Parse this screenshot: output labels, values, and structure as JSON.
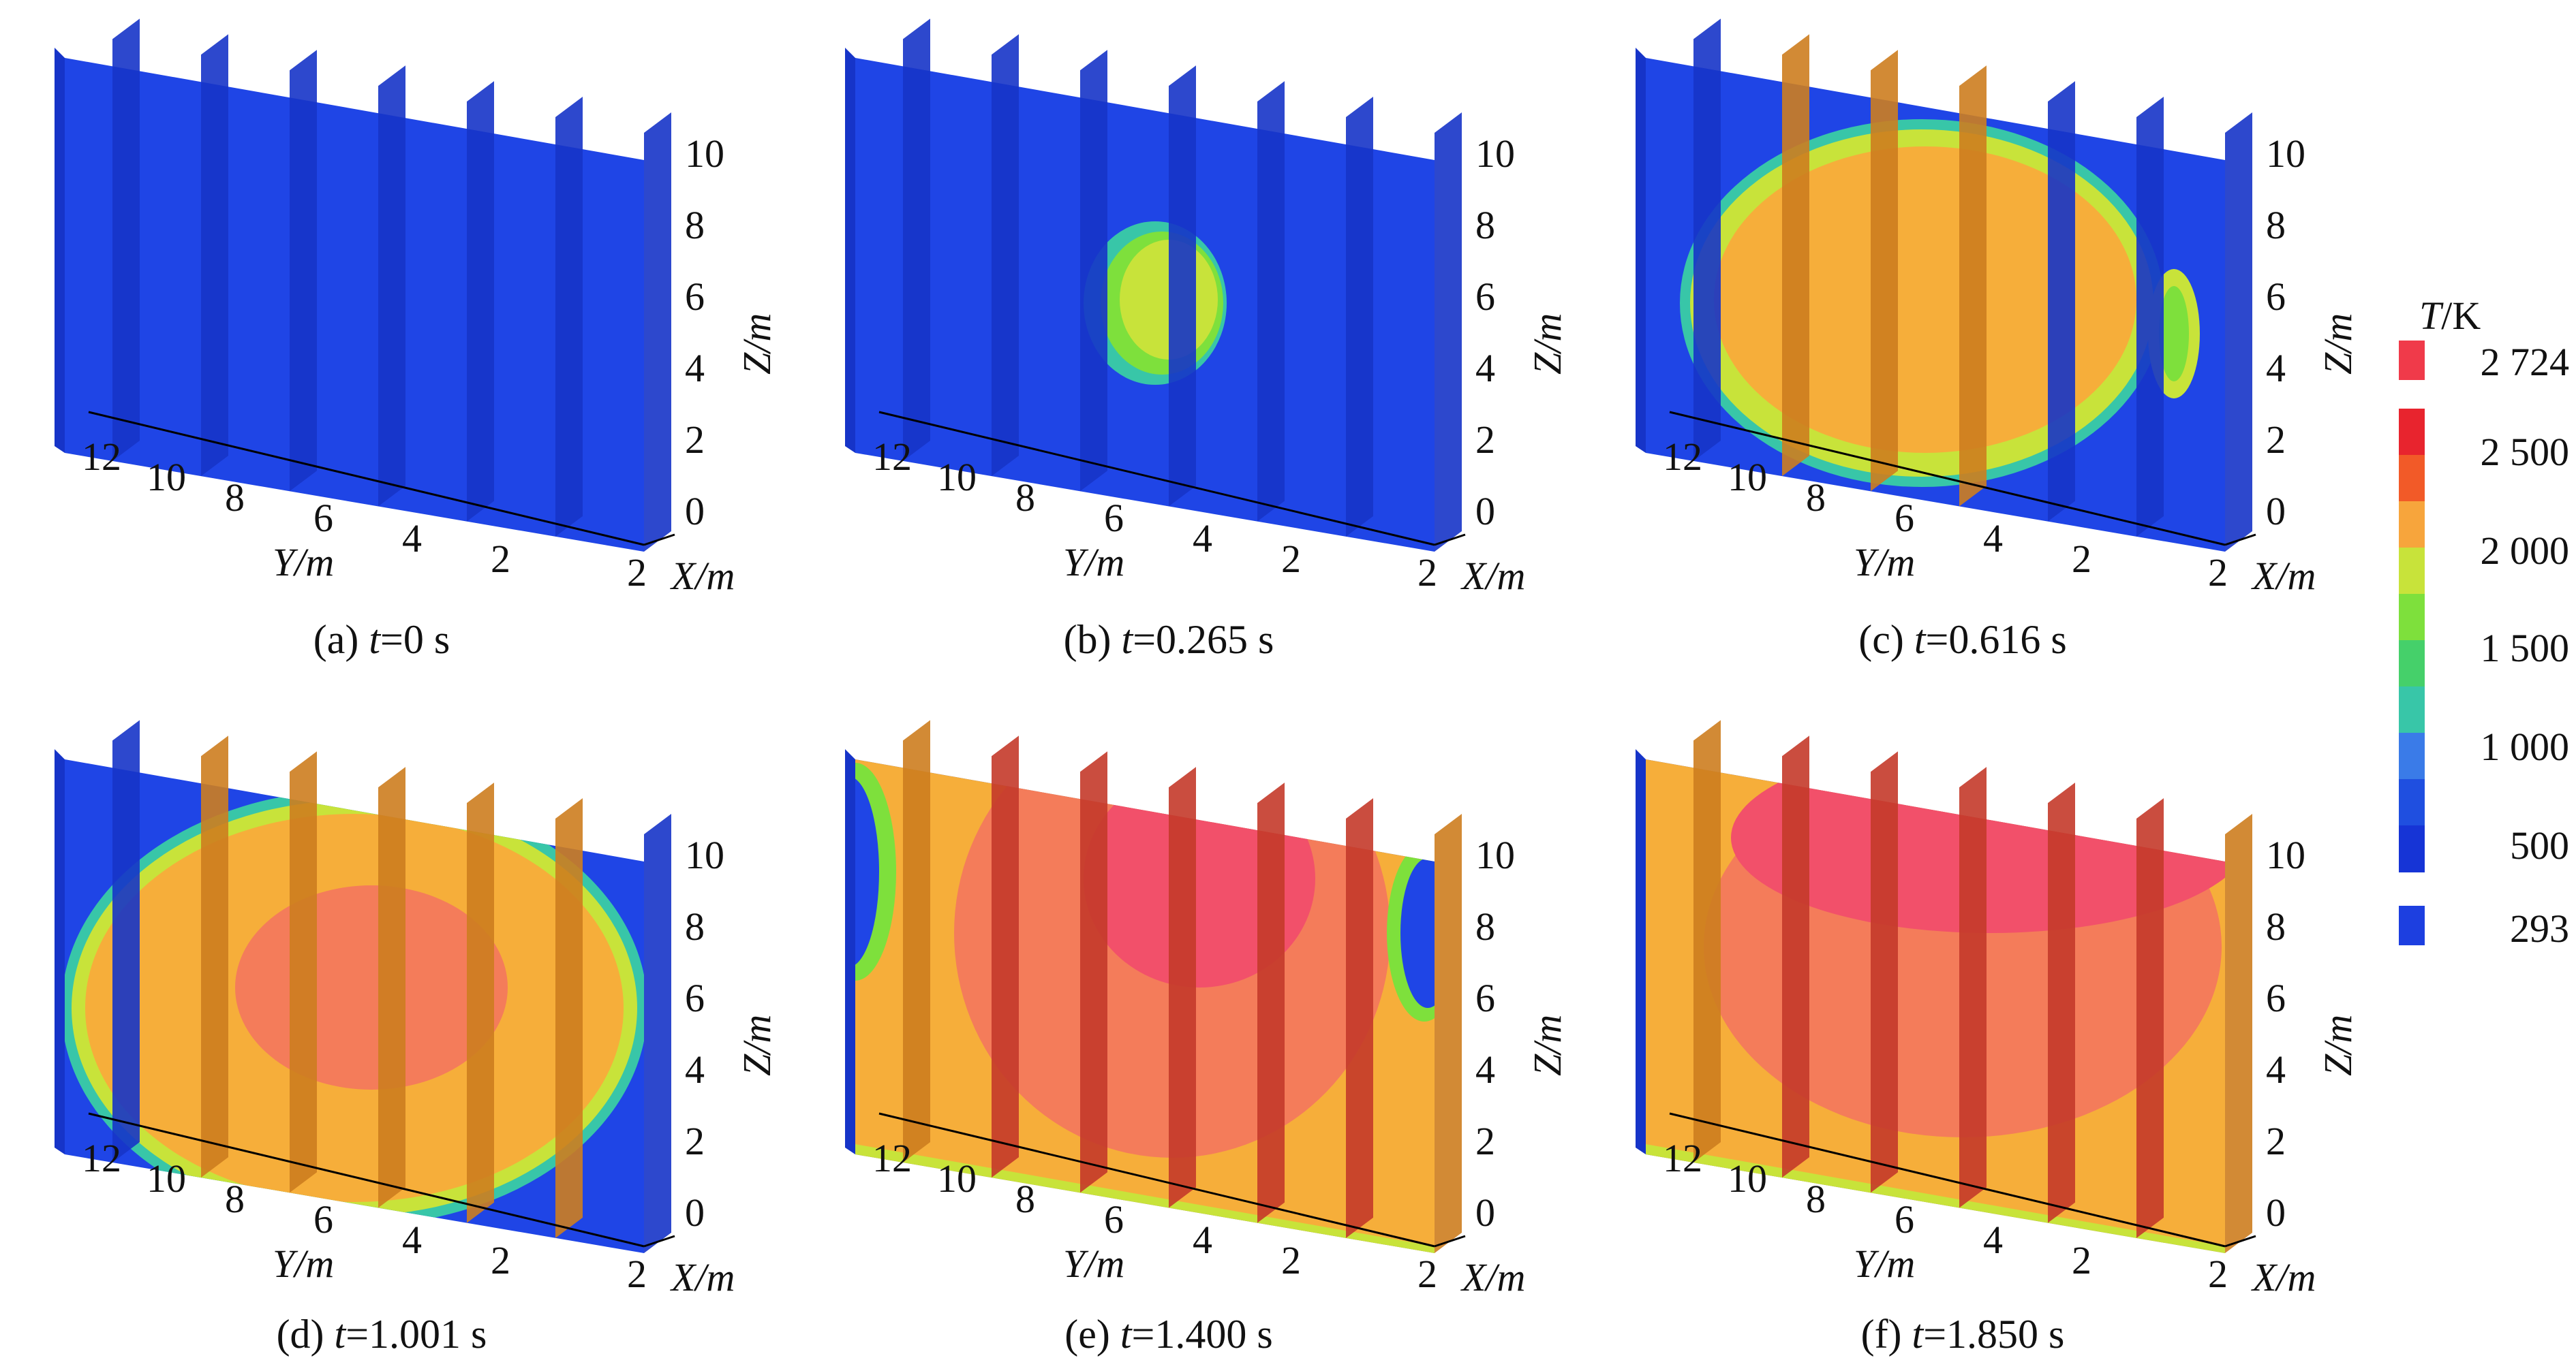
{
  "legend": {
    "title_var": "T",
    "title_unit": "/K",
    "labels": [
      "2 724",
      "2 500",
      "2 000",
      "1 500",
      "1 000",
      "500",
      "293"
    ],
    "colors": {
      "max": "#f03a4a",
      "bands": [
        "#e8242e",
        "#f25a28",
        "#f7a53c",
        "#c8e33a",
        "#7ee03c",
        "#45d06a",
        "#38c6a8",
        "#3a7be8",
        "#1f4fe0",
        "#1634d6"
      ],
      "min": "#1d3fe0"
    }
  },
  "axes": {
    "z_label": "Z/m",
    "y_label": "Y/m",
    "x_label": "X/m",
    "z_ticks": [
      "10",
      "8",
      "6",
      "4",
      "2",
      "0"
    ],
    "y_ticks": [
      "12",
      "10",
      "8",
      "6",
      "4",
      "2"
    ],
    "x_tick": "2"
  },
  "panels": [
    {
      "id": "a",
      "prefix": "(a) ",
      "var": "t",
      "value": "=0 s",
      "state": 0
    },
    {
      "id": "b",
      "prefix": "(b) ",
      "var": "t",
      "value": "=0.265 s",
      "state": 1
    },
    {
      "id": "c",
      "prefix": "(c) ",
      "var": "t",
      "value": "=0.616 s",
      "state": 2
    },
    {
      "id": "d",
      "prefix": "(d) ",
      "var": "t",
      "value": "=1.001 s",
      "state": 3
    },
    {
      "id": "e",
      "prefix": "(e) ",
      "var": "t",
      "value": "=1.400 s",
      "state": 4
    },
    {
      "id": "f",
      "prefix": "(f) ",
      "var": "t",
      "value": "=1.850 s",
      "state": 5
    }
  ]
}
